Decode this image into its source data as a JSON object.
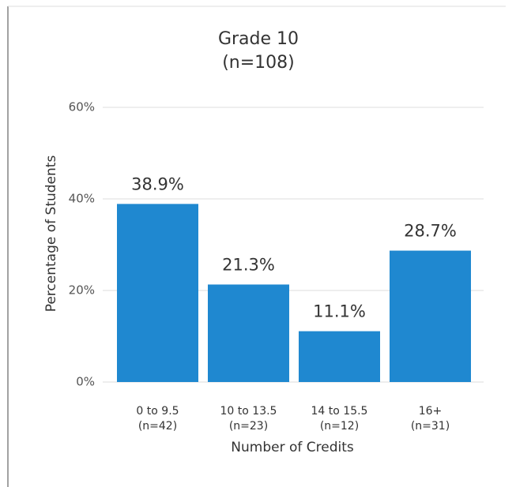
{
  "chart_data": {
    "type": "bar",
    "title": "Grade 10",
    "subtitle": "(n=108)",
    "xlabel": "Number of Credits",
    "ylabel": "Percentage of Students",
    "categories": [
      [
        "0 to 9.5",
        "(n=42)"
      ],
      [
        "10 to 13.5",
        "(n=23)"
      ],
      [
        "14 to 15.5",
        "(n=12)"
      ],
      [
        "16+",
        "(n=31)"
      ]
    ],
    "values": [
      38.9,
      21.3,
      11.1,
      28.7
    ],
    "value_labels": [
      "38.9%",
      "21.3%",
      "11.1%",
      "28.7%"
    ],
    "color": "#1f88d0",
    "ylim": [
      0,
      60
    ],
    "yticks": [
      {
        "value": 0,
        "label": "0%"
      },
      {
        "value": 20,
        "label": "20%"
      },
      {
        "value": 40,
        "label": "40%"
      },
      {
        "value": 60,
        "label": "60%"
      }
    ],
    "grid": true
  }
}
